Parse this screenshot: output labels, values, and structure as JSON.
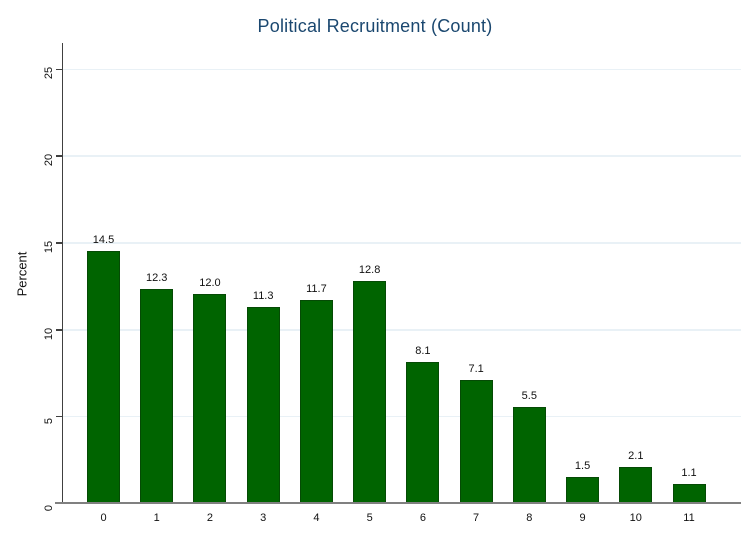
{
  "title": "Political Recruitment (Count)",
  "chart_data": {
    "type": "bar",
    "title": "Political Recruitment (Count)",
    "xlabel": "",
    "ylabel": "Percent",
    "categories": [
      "0",
      "1",
      "2",
      "3",
      "4",
      "5",
      "6",
      "7",
      "8",
      "9",
      "10",
      "11"
    ],
    "values": [
      14.5,
      12.3,
      12.0,
      11.3,
      11.7,
      12.8,
      8.1,
      7.1,
      5.5,
      1.5,
      2.1,
      1.1
    ],
    "value_labels": [
      "14.5",
      "12.3",
      "12.0",
      "11.3",
      "11.7",
      "12.8",
      "8.1",
      "7.1",
      "5.5",
      "1.5",
      "2.1",
      "1.1"
    ],
    "yticks": [
      0,
      5,
      10,
      15,
      20,
      25
    ],
    "ylim": [
      0,
      26.5
    ],
    "grid": true,
    "legend_position": "none",
    "colors": {
      "bar_fill": "#006400",
      "bar_border": "#054a05",
      "title_text": "#1a476f",
      "gridline": "#e9f1f6",
      "y_axis_line": "#404040",
      "x_axis_line": "#808080",
      "tick_text": "#111111"
    }
  }
}
